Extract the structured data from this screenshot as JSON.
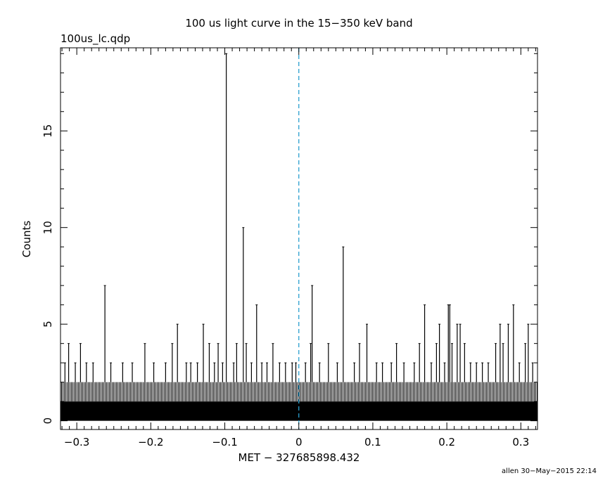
{
  "chart_data": {
    "type": "bar",
    "title": "100 us light curve in the 15−350 keV band",
    "file_label": "100us_lc.qdp",
    "xlabel": "MET − 327685898.432",
    "ylabel": "Counts",
    "footer": "allen 30−May−2015 22:14",
    "xlim": [
      -0.322,
      0.3225
    ],
    "ylim": [
      -0.45,
      19.3
    ],
    "x_ticks": [
      {
        "value": -0.3,
        "label": "−0.3"
      },
      {
        "value": -0.2,
        "label": "−0.2"
      },
      {
        "value": -0.1,
        "label": "−0.1"
      },
      {
        "value": 0,
        "label": "0"
      },
      {
        "value": 0.1,
        "label": "0.1"
      },
      {
        "value": 0.2,
        "label": "0.2"
      },
      {
        "value": 0.3,
        "label": "0.3"
      }
    ],
    "y_ticks": [
      {
        "value": 0,
        "label": "0"
      },
      {
        "value": 5,
        "label": "5"
      },
      {
        "value": 10,
        "label": "10"
      },
      {
        "value": 15,
        "label": "15"
      }
    ],
    "trigger_line_x": 0,
    "baseline_band": [
      0,
      1
    ],
    "noise_band": [
      1,
      2
    ],
    "spikes": [
      {
        "x": -0.316,
        "y": 3
      },
      {
        "x": -0.311,
        "y": 4
      },
      {
        "x": -0.302,
        "y": 3
      },
      {
        "x": -0.295,
        "y": 4
      },
      {
        "x": -0.287,
        "y": 3
      },
      {
        "x": -0.278,
        "y": 3
      },
      {
        "x": -0.262,
        "y": 7
      },
      {
        "x": -0.254,
        "y": 3
      },
      {
        "x": -0.238,
        "y": 3
      },
      {
        "x": -0.225,
        "y": 3
      },
      {
        "x": -0.208,
        "y": 4
      },
      {
        "x": -0.196,
        "y": 3
      },
      {
        "x": -0.18,
        "y": 3
      },
      {
        "x": -0.171,
        "y": 4
      },
      {
        "x": -0.164,
        "y": 5
      },
      {
        "x": -0.152,
        "y": 3
      },
      {
        "x": -0.146,
        "y": 3
      },
      {
        "x": -0.137,
        "y": 3
      },
      {
        "x": -0.129,
        "y": 5
      },
      {
        "x": -0.121,
        "y": 4
      },
      {
        "x": -0.114,
        "y": 3
      },
      {
        "x": -0.109,
        "y": 4
      },
      {
        "x": -0.103,
        "y": 3
      },
      {
        "x": -0.098,
        "y": 19
      },
      {
        "x": -0.088,
        "y": 3
      },
      {
        "x": -0.084,
        "y": 4
      },
      {
        "x": -0.075,
        "y": 10
      },
      {
        "x": -0.071,
        "y": 4
      },
      {
        "x": -0.064,
        "y": 3
      },
      {
        "x": -0.057,
        "y": 6
      },
      {
        "x": -0.05,
        "y": 3
      },
      {
        "x": -0.043,
        "y": 3
      },
      {
        "x": -0.035,
        "y": 4
      },
      {
        "x": -0.026,
        "y": 3
      },
      {
        "x": -0.018,
        "y": 3
      },
      {
        "x": -0.009,
        "y": 3
      },
      {
        "x": -0.004,
        "y": 3
      },
      {
        "x": 0.009,
        "y": 3
      },
      {
        "x": 0.016,
        "y": 4
      },
      {
        "x": 0.018,
        "y": 7
      },
      {
        "x": 0.028,
        "y": 3
      },
      {
        "x": 0.04,
        "y": 4
      },
      {
        "x": 0.052,
        "y": 3
      },
      {
        "x": 0.06,
        "y": 9
      },
      {
        "x": 0.075,
        "y": 3
      },
      {
        "x": 0.082,
        "y": 4
      },
      {
        "x": 0.092,
        "y": 5
      },
      {
        "x": 0.105,
        "y": 3
      },
      {
        "x": 0.113,
        "y": 3
      },
      {
        "x": 0.125,
        "y": 3
      },
      {
        "x": 0.132,
        "y": 4
      },
      {
        "x": 0.142,
        "y": 3
      },
      {
        "x": 0.156,
        "y": 3
      },
      {
        "x": 0.163,
        "y": 4
      },
      {
        "x": 0.17,
        "y": 6
      },
      {
        "x": 0.179,
        "y": 3
      },
      {
        "x": 0.186,
        "y": 4
      },
      {
        "x": 0.19,
        "y": 5
      },
      {
        "x": 0.197,
        "y": 3
      },
      {
        "x": 0.202,
        "y": 6
      },
      {
        "x": 0.204,
        "y": 6
      },
      {
        "x": 0.207,
        "y": 4
      },
      {
        "x": 0.214,
        "y": 5
      },
      {
        "x": 0.218,
        "y": 5
      },
      {
        "x": 0.224,
        "y": 4
      },
      {
        "x": 0.232,
        "y": 3
      },
      {
        "x": 0.24,
        "y": 3
      },
      {
        "x": 0.248,
        "y": 3
      },
      {
        "x": 0.256,
        "y": 3
      },
      {
        "x": 0.266,
        "y": 4
      },
      {
        "x": 0.272,
        "y": 5
      },
      {
        "x": 0.276,
        "y": 4
      },
      {
        "x": 0.283,
        "y": 5
      },
      {
        "x": 0.29,
        "y": 6
      },
      {
        "x": 0.298,
        "y": 3
      },
      {
        "x": 0.306,
        "y": 4
      },
      {
        "x": 0.31,
        "y": 5
      },
      {
        "x": 0.316,
        "y": 3
      }
    ],
    "colors": {
      "frame": "#000000",
      "data": "#000000",
      "trigger_line": "#2a9fcf",
      "background": "#ffffff"
    }
  }
}
